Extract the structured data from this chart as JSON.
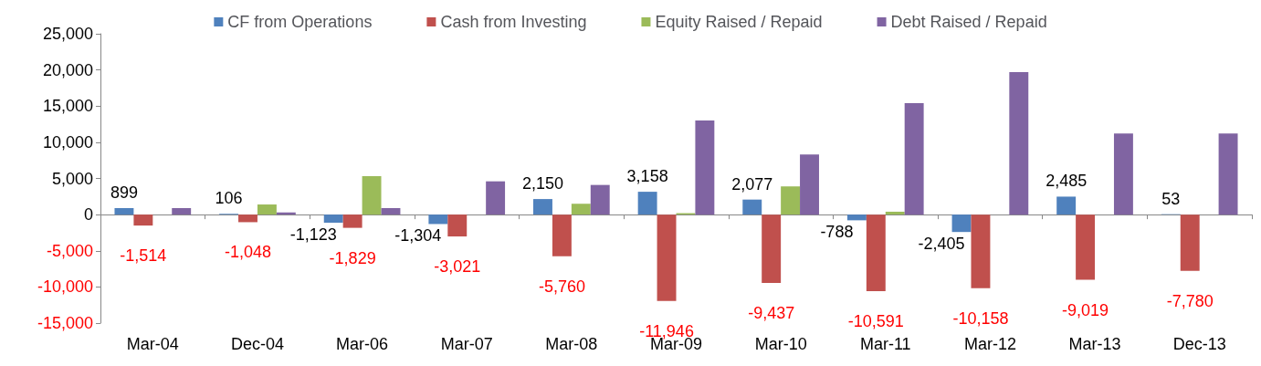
{
  "chart_data": {
    "type": "bar",
    "categories": [
      "Mar-04",
      "Dec-04",
      "Mar-06",
      "Mar-07",
      "Mar-08",
      "Mar-09",
      "Mar-10",
      "Mar-11",
      "Mar-12",
      "Mar-13",
      "Dec-13"
    ],
    "series": [
      {
        "name": "CF from Operations",
        "color": "#4f81bd",
        "values": [
          899,
          106,
          -1123,
          -1304,
          2150,
          3158,
          2077,
          -788,
          -2405,
          2485,
          53
        ],
        "value_labels": [
          "899",
          "106",
          "-1,123",
          "-1,304",
          "2,150",
          "3,158",
          "2,077",
          "-788",
          "-2,405",
          "2,485",
          "53"
        ]
      },
      {
        "name": "Cash from Investing",
        "color": "#c0504d",
        "values": [
          -1514,
          -1048,
          -1829,
          -3021,
          -5760,
          -11946,
          -9437,
          -10591,
          -10158,
          -9019,
          -7780
        ],
        "value_labels": [
          "-1,514",
          "-1,048",
          "-1,829",
          "-3,021",
          "-5,760",
          "-11,946",
          "-9,437",
          "-10,591",
          "-10,158",
          "-9,019",
          "-7,780"
        ]
      },
      {
        "name": "Equity Raised / Repaid",
        "color": "#9bbb59",
        "values": [
          0,
          1400,
          5300,
          0,
          1500,
          200,
          3900,
          400,
          0,
          0,
          0
        ]
      },
      {
        "name": "Debt Raised / Repaid",
        "color": "#8064a2",
        "values": [
          900,
          300,
          900,
          4600,
          4100,
          13000,
          8300,
          15400,
          19700,
          11200,
          11200
        ]
      }
    ],
    "ylim": [
      -15000,
      25000
    ],
    "yticks": [
      {
        "value": -15000,
        "label": "-15,000"
      },
      {
        "value": -10000,
        "label": "-10,000"
      },
      {
        "value": -5000,
        "label": "-5,000"
      },
      0,
      {
        "value": 5000,
        "label": "5,000"
      },
      {
        "value": 10000,
        "label": "10,000"
      },
      {
        "value": 15000,
        "label": "15,000"
      },
      {
        "value": 20000,
        "label": "20,000"
      },
      {
        "value": 25000,
        "label": "25,000"
      }
    ],
    "legend": "top"
  }
}
